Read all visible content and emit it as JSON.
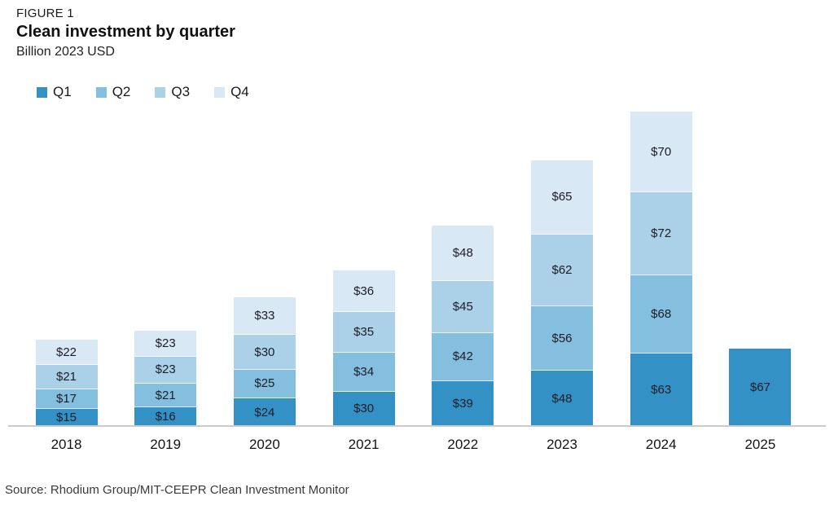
{
  "figure_label": "FIGURE 1",
  "title": "Clean investment by quarter",
  "subtitle": "Billion 2023 USD",
  "source": "Source: Rhodium Group/MIT-CEEPR Clean Investment Monitor",
  "colors": {
    "axis_line": "#cbcbcb",
    "value_label_text": "#1c1c26"
  },
  "chart_data": {
    "type": "bar",
    "stacked": true,
    "title": "Clean investment by quarter",
    "subtitle": "Billion 2023 USD",
    "value_prefix": "$",
    "unit": "Billion 2023 USD",
    "legend_position": "top-left",
    "grid": false,
    "y_axis_shown": false,
    "ylim": [
      0,
      280
    ],
    "categories": [
      "2018",
      "2019",
      "2020",
      "2021",
      "2022",
      "2023",
      "2024",
      "2025"
    ],
    "series": [
      {
        "name": "Q1",
        "color": "#3391c6",
        "values": [
          15,
          16,
          24,
          30,
          39,
          48,
          63,
          67
        ]
      },
      {
        "name": "Q2",
        "color": "#84bfdf",
        "values": [
          17,
          21,
          25,
          34,
          42,
          56,
          68,
          null
        ]
      },
      {
        "name": "Q3",
        "color": "#abd1e8",
        "values": [
          21,
          23,
          30,
          35,
          45,
          62,
          72,
          null
        ]
      },
      {
        "name": "Q4",
        "color": "#d9e8f5",
        "values": [
          22,
          23,
          33,
          36,
          48,
          65,
          70,
          null
        ]
      }
    ],
    "totals": [
      75,
      83,
      112,
      135,
      174,
      231,
      273,
      67
    ]
  }
}
